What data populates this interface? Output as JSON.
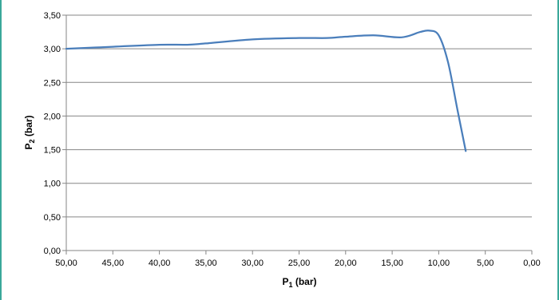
{
  "chart_data": {
    "type": "line",
    "xlabel": "P",
    "xlabel_sub": "1",
    "xlabel_unit": " (bar)",
    "ylabel": "P",
    "ylabel_sub": "2",
    "ylabel_unit": " (bar)",
    "xlim": [
      50,
      0
    ],
    "ylim": [
      0,
      3.5
    ],
    "x_ticks": [
      "50,00",
      "45,00",
      "40,00",
      "35,00",
      "30,00",
      "25,00",
      "20,00",
      "15,00",
      "10,00",
      "5,00",
      "0,00"
    ],
    "y_ticks": [
      "0,00",
      "0,50",
      "1,00",
      "1,50",
      "2,00",
      "2,50",
      "3,00",
      "3,50"
    ],
    "grid": true,
    "series": [
      {
        "color": "#4a7ebb",
        "x": [
          50,
          45,
          40,
          37,
          35,
          30,
          25,
          22,
          20,
          17,
          14,
          12,
          11,
          10,
          9,
          8,
          7.1
        ],
        "y": [
          3.0,
          3.03,
          3.06,
          3.06,
          3.08,
          3.14,
          3.16,
          3.16,
          3.18,
          3.2,
          3.17,
          3.25,
          3.27,
          3.2,
          2.8,
          2.1,
          1.48
        ]
      }
    ]
  }
}
